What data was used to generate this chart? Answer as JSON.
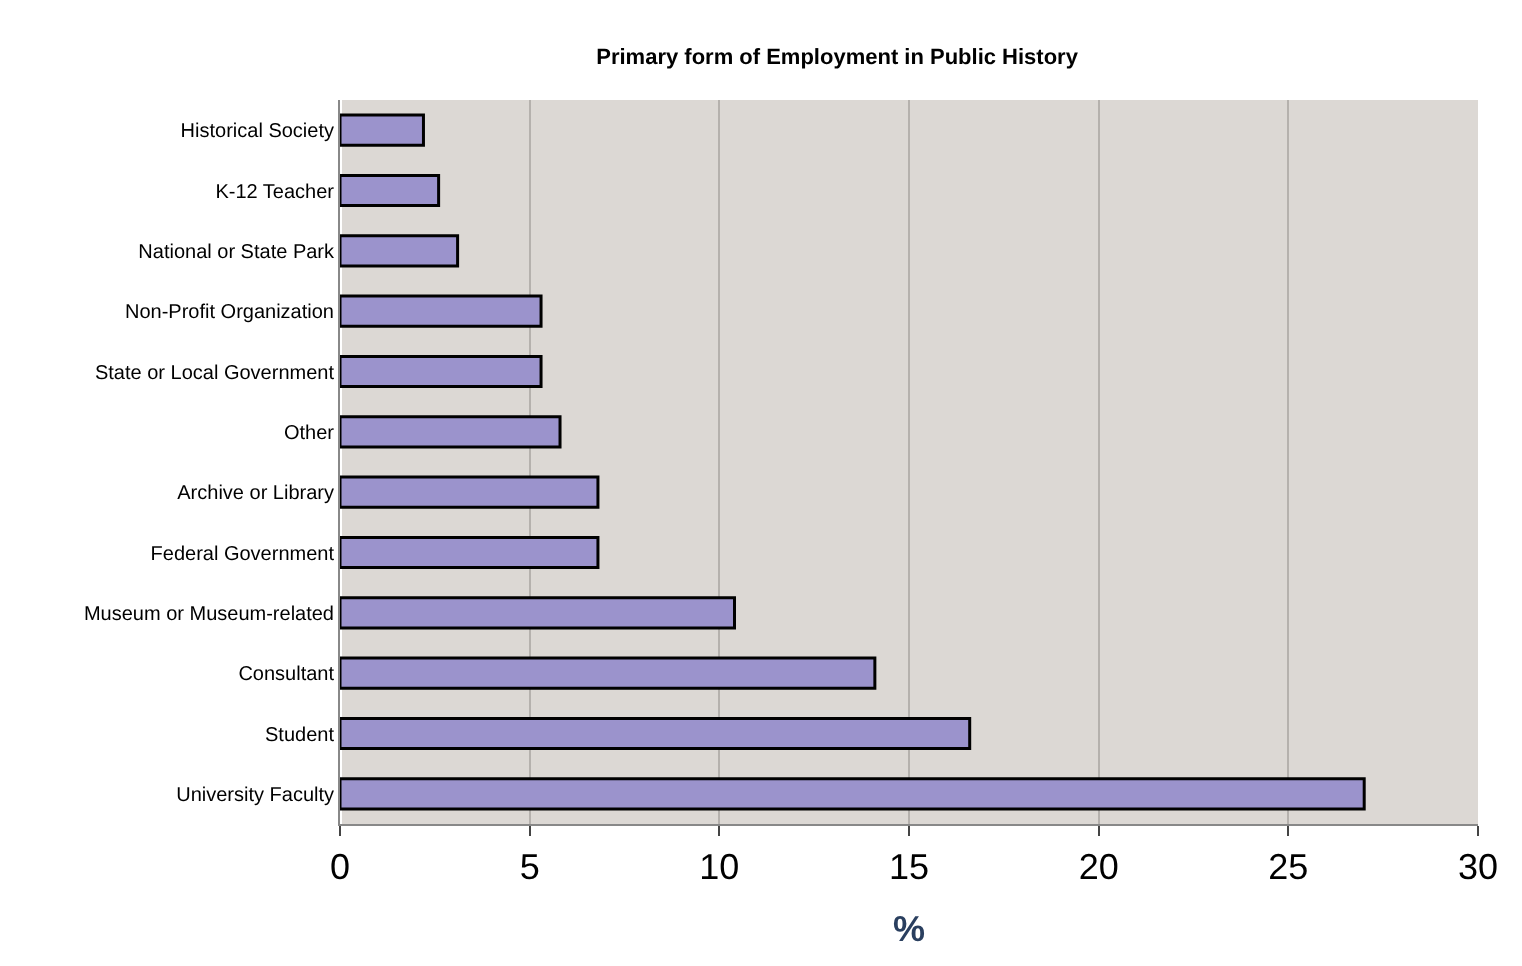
{
  "chart_data": {
    "type": "bar",
    "orientation": "horizontal",
    "title": "Primary form of Employment in Public History",
    "xlabel": "%",
    "categories": [
      "Historical Society",
      "K-12 Teacher",
      "National or State Park",
      "Non-Profit Organization",
      "State or Local Government",
      "Other",
      "Archive or Library",
      "Federal Government",
      "Museum or Museum-related",
      "Consultant",
      "Student",
      "University Faculty"
    ],
    "values": [
      2.2,
      2.6,
      3.1,
      5.3,
      5.3,
      5.8,
      6.8,
      6.8,
      10.4,
      14.1,
      16.6,
      27.0
    ],
    "color": "#9b93cc",
    "xlim": [
      0,
      30
    ],
    "xticks": [
      0,
      5,
      10,
      15,
      20,
      25,
      30
    ],
    "grid": "x",
    "legend": false
  }
}
